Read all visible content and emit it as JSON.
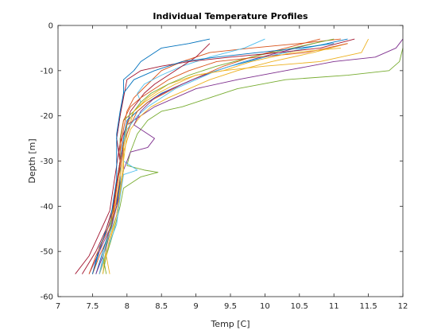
{
  "chart_data": {
    "type": "line",
    "title": "Individual Temperature Profiles",
    "xlabel": "Temp [C]",
    "ylabel": "Depth [m]",
    "xlim": [
      7,
      12
    ],
    "ylim": [
      -60,
      0
    ],
    "xticks": [
      "7",
      "7.5",
      "8",
      "8.5",
      "9",
      "9.5",
      "10",
      "10.5",
      "11",
      "11.5",
      "12"
    ],
    "yticks": [
      "0",
      "-10",
      "-20",
      "-30",
      "-40",
      "-50",
      "-60"
    ],
    "grid": false,
    "series": [
      {
        "color": "#0072BD",
        "points": [
          [
            9.2,
            -3
          ],
          [
            8.9,
            -4
          ],
          [
            8.5,
            -5
          ],
          [
            8.2,
            -8
          ],
          [
            8.1,
            -10
          ],
          [
            7.95,
            -12
          ],
          [
            7.95,
            -15
          ],
          [
            7.9,
            -20
          ],
          [
            7.85,
            -25
          ],
          [
            7.9,
            -30
          ],
          [
            7.85,
            -35
          ],
          [
            7.8,
            -40
          ],
          [
            7.7,
            -45
          ],
          [
            7.6,
            -50
          ],
          [
            7.5,
            -55
          ]
        ]
      },
      {
        "color": "#D95319",
        "points": [
          [
            11.1,
            -3
          ],
          [
            10.5,
            -4
          ],
          [
            9.8,
            -5
          ],
          [
            9.2,
            -6
          ],
          [
            8.8,
            -8
          ],
          [
            8.5,
            -10
          ],
          [
            8.3,
            -13
          ],
          [
            8.1,
            -16
          ],
          [
            8.0,
            -19
          ],
          [
            7.95,
            -23
          ],
          [
            7.9,
            -28
          ],
          [
            7.9,
            -34
          ],
          [
            7.85,
            -40
          ],
          [
            7.75,
            -46
          ],
          [
            7.6,
            -51
          ],
          [
            7.5,
            -55
          ]
        ]
      },
      {
        "color": "#EDB120",
        "points": [
          [
            11.5,
            -3
          ],
          [
            11.4,
            -6
          ],
          [
            10.8,
            -8
          ],
          [
            10.0,
            -9
          ],
          [
            9.4,
            -10
          ],
          [
            9.0,
            -11
          ],
          [
            8.6,
            -13
          ],
          [
            8.3,
            -16
          ],
          [
            8.1,
            -19
          ],
          [
            8.0,
            -24
          ],
          [
            7.95,
            -30
          ],
          [
            7.9,
            -36
          ],
          [
            7.85,
            -42
          ],
          [
            7.75,
            -48
          ],
          [
            7.65,
            -53
          ],
          [
            7.6,
            -55
          ]
        ]
      },
      {
        "color": "#7E2F8E",
        "points": [
          [
            12.0,
            -3
          ],
          [
            11.9,
            -5
          ],
          [
            11.6,
            -7
          ],
          [
            11.0,
            -8
          ],
          [
            10.3,
            -10
          ],
          [
            9.6,
            -12
          ],
          [
            9.0,
            -14
          ],
          [
            8.7,
            -16
          ],
          [
            8.4,
            -18
          ],
          [
            8.2,
            -20
          ],
          [
            8.0,
            -22
          ],
          [
            7.95,
            -27
          ],
          [
            7.9,
            -33
          ],
          [
            7.85,
            -39
          ],
          [
            7.75,
            -45
          ],
          [
            7.6,
            -50
          ],
          [
            7.45,
            -55
          ]
        ]
      },
      {
        "color": "#77AC30",
        "points": [
          [
            12.0,
            -5
          ],
          [
            11.95,
            -8
          ],
          [
            11.8,
            -10
          ],
          [
            11.2,
            -11
          ],
          [
            10.3,
            -12
          ],
          [
            9.6,
            -14
          ],
          [
            9.2,
            -16
          ],
          [
            8.8,
            -18
          ],
          [
            8.5,
            -19
          ],
          [
            8.3,
            -21
          ],
          [
            8.15,
            -24
          ],
          [
            8.05,
            -28
          ],
          [
            8.0,
            -31
          ],
          [
            8.25,
            -32
          ],
          [
            8.45,
            -32.5
          ],
          [
            8.2,
            -33.5
          ],
          [
            7.95,
            -36
          ],
          [
            7.9,
            -40
          ],
          [
            7.8,
            -46
          ],
          [
            7.7,
            -51
          ],
          [
            7.65,
            -55
          ]
        ]
      },
      {
        "color": "#4DBEEE",
        "points": [
          [
            10.0,
            -3
          ],
          [
            9.7,
            -5
          ],
          [
            9.2,
            -7
          ],
          [
            8.8,
            -9
          ],
          [
            8.5,
            -11
          ],
          [
            8.25,
            -13
          ],
          [
            8.15,
            -15
          ],
          [
            8.2,
            -17
          ],
          [
            8.1,
            -19
          ],
          [
            8.0,
            -22
          ],
          [
            7.95,
            -26
          ],
          [
            7.95,
            -30
          ],
          [
            8.15,
            -32
          ],
          [
            7.95,
            -33
          ],
          [
            7.9,
            -38
          ],
          [
            7.85,
            -44
          ],
          [
            7.7,
            -50
          ],
          [
            7.6,
            -55
          ]
        ]
      },
      {
        "color": "#A2142F",
        "points": [
          [
            9.2,
            -4
          ],
          [
            9.0,
            -7
          ],
          [
            8.8,
            -9
          ],
          [
            8.6,
            -11
          ],
          [
            8.4,
            -13
          ],
          [
            8.25,
            -15
          ],
          [
            8.15,
            -17
          ],
          [
            8.05,
            -19
          ],
          [
            8.0,
            -22
          ],
          [
            7.9,
            -26
          ],
          [
            7.85,
            -31
          ],
          [
            7.8,
            -36
          ],
          [
            7.75,
            -41
          ],
          [
            7.6,
            -46
          ],
          [
            7.45,
            -51
          ],
          [
            7.25,
            -55
          ]
        ]
      },
      {
        "color": "#0072BD",
        "points": [
          [
            11.2,
            -3
          ],
          [
            10.6,
            -5
          ],
          [
            10.0,
            -7
          ],
          [
            9.5,
            -9
          ],
          [
            9.1,
            -11
          ],
          [
            8.8,
            -13
          ],
          [
            8.5,
            -15
          ],
          [
            8.3,
            -17
          ],
          [
            8.15,
            -19
          ],
          [
            8.0,
            -21
          ],
          [
            7.95,
            -25
          ],
          [
            7.9,
            -30
          ],
          [
            7.9,
            -35
          ],
          [
            7.85,
            -40
          ],
          [
            7.75,
            -45
          ],
          [
            7.65,
            -50
          ],
          [
            7.55,
            -55
          ]
        ]
      },
      {
        "color": "#D95319",
        "points": [
          [
            10.8,
            -3
          ],
          [
            10.3,
            -5
          ],
          [
            9.8,
            -7
          ],
          [
            9.4,
            -9
          ],
          [
            9.1,
            -11
          ],
          [
            8.8,
            -13
          ],
          [
            8.55,
            -15
          ],
          [
            8.3,
            -17
          ],
          [
            8.15,
            -19
          ],
          [
            8.05,
            -22
          ],
          [
            7.95,
            -26
          ],
          [
            7.9,
            -31
          ],
          [
            7.85,
            -36
          ],
          [
            7.8,
            -42
          ],
          [
            7.7,
            -48
          ],
          [
            7.6,
            -55
          ]
        ]
      },
      {
        "color": "#EDB120",
        "points": [
          [
            11.2,
            -4
          ],
          [
            10.7,
            -6
          ],
          [
            10.1,
            -8
          ],
          [
            9.6,
            -10
          ],
          [
            9.2,
            -12
          ],
          [
            8.9,
            -14
          ],
          [
            8.6,
            -16
          ],
          [
            8.35,
            -18
          ],
          [
            8.2,
            -20
          ],
          [
            8.05,
            -23
          ],
          [
            7.95,
            -28
          ],
          [
            7.9,
            -33
          ],
          [
            7.85,
            -38
          ],
          [
            7.8,
            -43
          ],
          [
            7.7,
            -49
          ],
          [
            7.65,
            -55
          ]
        ]
      },
      {
        "color": "#7E2F8E",
        "points": [
          [
            10.7,
            -4
          ],
          [
            10.2,
            -6
          ],
          [
            9.7,
            -8
          ],
          [
            9.3,
            -10
          ],
          [
            8.95,
            -12
          ],
          [
            8.65,
            -14
          ],
          [
            8.4,
            -16
          ],
          [
            8.2,
            -19
          ],
          [
            8.1,
            -22
          ],
          [
            8.3,
            -24
          ],
          [
            8.4,
            -25
          ],
          [
            8.3,
            -27
          ],
          [
            8.05,
            -28
          ],
          [
            7.95,
            -32
          ],
          [
            7.9,
            -37
          ],
          [
            7.8,
            -43
          ],
          [
            7.7,
            -49
          ],
          [
            7.55,
            -55
          ]
        ]
      },
      {
        "color": "#77AC30",
        "points": [
          [
            11.0,
            -3
          ],
          [
            10.4,
            -5
          ],
          [
            9.8,
            -7
          ],
          [
            9.3,
            -9
          ],
          [
            8.9,
            -11
          ],
          [
            8.6,
            -13
          ],
          [
            8.35,
            -15
          ],
          [
            8.2,
            -17
          ],
          [
            8.1,
            -19
          ],
          [
            7.95,
            -21
          ],
          [
            7.9,
            -25
          ],
          [
            7.9,
            -30
          ],
          [
            7.85,
            -35
          ],
          [
            7.8,
            -40
          ],
          [
            7.75,
            -46
          ],
          [
            7.65,
            -51
          ],
          [
            7.7,
            -55
          ]
        ]
      },
      {
        "color": "#4DBEEE",
        "points": [
          [
            10.9,
            -4
          ],
          [
            10.3,
            -6
          ],
          [
            9.7,
            -8
          ],
          [
            9.3,
            -10
          ],
          [
            9.0,
            -12
          ],
          [
            8.7,
            -14
          ],
          [
            8.5,
            -16
          ],
          [
            8.3,
            -18
          ],
          [
            8.15,
            -20
          ],
          [
            8.0,
            -23
          ],
          [
            7.95,
            -27
          ],
          [
            7.95,
            -32
          ],
          [
            7.9,
            -37
          ],
          [
            7.85,
            -42
          ],
          [
            7.7,
            -48
          ],
          [
            7.6,
            -55
          ]
        ]
      },
      {
        "color": "#A2142F",
        "points": [
          [
            11.3,
            -3
          ],
          [
            10.8,
            -5
          ],
          [
            10.2,
            -6
          ],
          [
            9.5,
            -7
          ],
          [
            8.9,
            -8
          ],
          [
            8.5,
            -9
          ],
          [
            8.2,
            -10
          ],
          [
            8.0,
            -12
          ],
          [
            7.95,
            -16
          ],
          [
            7.9,
            -20
          ],
          [
            7.85,
            -25
          ],
          [
            7.9,
            -30
          ],
          [
            7.85,
            -35
          ],
          [
            7.8,
            -40
          ],
          [
            7.7,
            -45
          ],
          [
            7.55,
            -50
          ],
          [
            7.35,
            -55
          ]
        ]
      },
      {
        "color": "#0072BD",
        "points": [
          [
            11.0,
            -4
          ],
          [
            10.5,
            -5
          ],
          [
            9.9,
            -6
          ],
          [
            9.3,
            -7
          ],
          [
            8.8,
            -8
          ],
          [
            8.4,
            -10
          ],
          [
            8.1,
            -12
          ],
          [
            7.95,
            -15
          ],
          [
            7.9,
            -19
          ],
          [
            7.85,
            -24
          ],
          [
            7.85,
            -29
          ],
          [
            7.85,
            -34
          ],
          [
            7.8,
            -39
          ],
          [
            7.75,
            -44
          ],
          [
            7.6,
            -49
          ],
          [
            7.5,
            -55
          ]
        ]
      },
      {
        "color": "#D95319",
        "points": [
          [
            11.2,
            -4
          ],
          [
            10.6,
            -6
          ],
          [
            9.9,
            -7
          ],
          [
            9.3,
            -8
          ],
          [
            8.9,
            -10
          ],
          [
            8.6,
            -12
          ],
          [
            8.4,
            -14
          ],
          [
            8.2,
            -16
          ],
          [
            8.05,
            -18
          ],
          [
            7.95,
            -21
          ],
          [
            7.9,
            -26
          ],
          [
            7.9,
            -31
          ],
          [
            7.85,
            -36
          ],
          [
            7.8,
            -41
          ],
          [
            7.7,
            -46
          ],
          [
            7.55,
            -51
          ],
          [
            7.45,
            -55
          ]
        ]
      },
      {
        "color": "#EDB120",
        "points": [
          [
            11.1,
            -5
          ],
          [
            10.4,
            -6
          ],
          [
            9.8,
            -8
          ],
          [
            9.4,
            -10
          ],
          [
            9.0,
            -11
          ],
          [
            8.7,
            -13
          ],
          [
            8.45,
            -15
          ],
          [
            8.25,
            -17
          ],
          [
            8.1,
            -19
          ],
          [
            8.0,
            -22
          ],
          [
            7.95,
            -27
          ],
          [
            7.95,
            -32
          ],
          [
            7.9,
            -37
          ],
          [
            7.85,
            -42
          ],
          [
            7.75,
            -47
          ],
          [
            7.7,
            -51
          ],
          [
            7.75,
            -55
          ]
        ]
      }
    ]
  }
}
